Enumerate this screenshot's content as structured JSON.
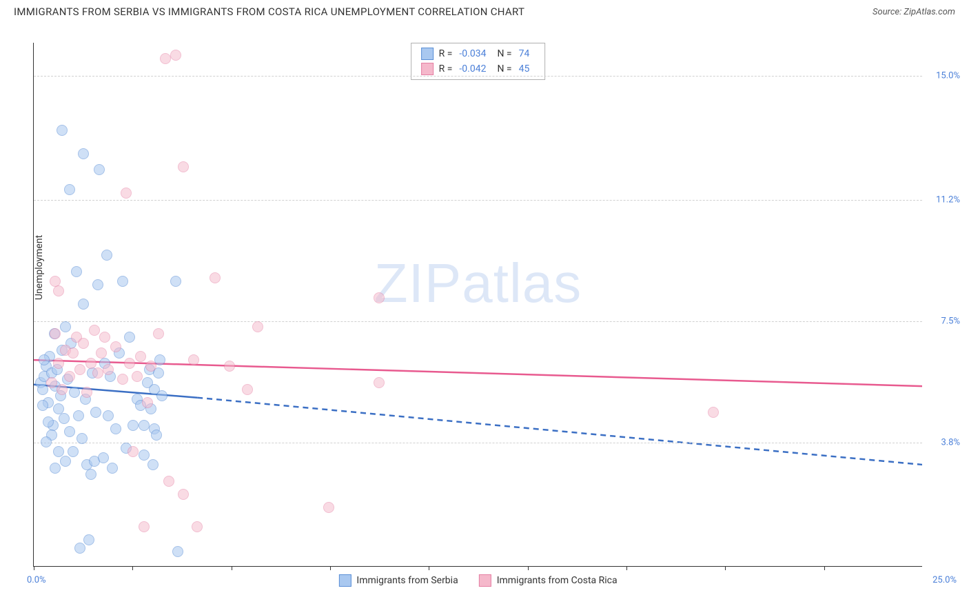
{
  "title": "IMMIGRANTS FROM SERBIA VS IMMIGRANTS FROM COSTA RICA UNEMPLOYMENT CORRELATION CHART",
  "source": "Source: ZipAtlas.com",
  "y_axis_label": "Unemployment",
  "watermark": "ZIPatlas",
  "chart": {
    "type": "scatter",
    "x_domain": [
      0,
      25
    ],
    "y_domain": [
      0,
      16
    ],
    "background_color": "#ffffff",
    "grid_color": "#d0d0d0",
    "grid_dash": "4,4",
    "point_radius": 8,
    "point_stroke_width": 1.5,
    "y_ticks": [
      {
        "value": 3.8,
        "label": "3.8%"
      },
      {
        "value": 7.5,
        "label": "7.5%"
      },
      {
        "value": 11.2,
        "label": "11.2%"
      },
      {
        "value": 15.0,
        "label": "15.0%"
      }
    ],
    "x_tick_positions": [
      0,
      2.78,
      5.56,
      8.33,
      11.11,
      13.89,
      16.67,
      19.44,
      22.22
    ],
    "x_label_min": "0.0%",
    "x_label_max": "25.0%",
    "x_label_color": "#4a7fd8",
    "y_label_color": "#4a7fd8"
  },
  "series": [
    {
      "name": "Immigrants from Serbia",
      "fill": "#a9c8f0",
      "stroke": "#5b8fd6",
      "fill_opacity": 0.55,
      "R": "-0.034",
      "N": "74",
      "trend": {
        "solid_from": [
          0,
          5.55
        ],
        "solid_to": [
          4.6,
          5.15
        ],
        "dash_from": [
          4.6,
          5.15
        ],
        "dash_to": [
          25,
          3.1
        ],
        "color": "#3b6fc4",
        "width": 2.5
      },
      "points": [
        [
          0.2,
          5.6
        ],
        [
          0.25,
          5.4
        ],
        [
          0.3,
          5.8
        ],
        [
          0.35,
          6.1
        ],
        [
          0.4,
          5.0
        ],
        [
          0.45,
          6.4
        ],
        [
          0.5,
          5.9
        ],
        [
          0.55,
          4.3
        ],
        [
          0.58,
          7.1
        ],
        [
          0.6,
          5.5
        ],
        [
          0.65,
          6.0
        ],
        [
          0.7,
          4.8
        ],
        [
          0.75,
          5.2
        ],
        [
          0.8,
          6.6
        ],
        [
          0.85,
          4.5
        ],
        [
          0.9,
          7.3
        ],
        [
          0.95,
          5.7
        ],
        [
          1.0,
          4.1
        ],
        [
          1.05,
          6.8
        ],
        [
          1.1,
          3.5
        ],
        [
          1.15,
          5.3
        ],
        [
          1.2,
          9.0
        ],
        [
          1.25,
          4.6
        ],
        [
          1.3,
          0.55
        ],
        [
          1.35,
          3.9
        ],
        [
          1.4,
          8.0
        ],
        [
          1.45,
          5.1
        ],
        [
          1.5,
          3.1
        ],
        [
          1.55,
          0.8
        ],
        [
          1.4,
          12.6
        ],
        [
          1.6,
          2.8
        ],
        [
          1.65,
          5.9
        ],
        [
          1.7,
          3.2
        ],
        [
          1.75,
          4.7
        ],
        [
          1.8,
          8.6
        ],
        [
          1.85,
          12.1
        ],
        [
          1.0,
          11.5
        ],
        [
          1.95,
          3.3
        ],
        [
          2.0,
          6.2
        ],
        [
          2.05,
          9.5
        ],
        [
          2.1,
          4.6
        ],
        [
          2.15,
          5.8
        ],
        [
          2.2,
          3.0
        ],
        [
          2.3,
          4.2
        ],
        [
          2.4,
          6.5
        ],
        [
          2.5,
          8.7
        ],
        [
          2.6,
          3.6
        ],
        [
          2.7,
          7.0
        ],
        [
          2.8,
          4.3
        ],
        [
          2.9,
          5.1
        ],
        [
          3.0,
          4.9
        ],
        [
          3.1,
          3.4
        ],
        [
          3.1,
          4.3
        ],
        [
          3.2,
          5.6
        ],
        [
          3.25,
          6.0
        ],
        [
          3.3,
          4.8
        ],
        [
          3.35,
          3.1
        ],
        [
          3.4,
          5.4
        ],
        [
          3.4,
          4.2
        ],
        [
          3.45,
          4.0
        ],
        [
          3.5,
          5.9
        ],
        [
          3.55,
          6.3
        ],
        [
          3.6,
          5.2
        ],
        [
          4.0,
          8.7
        ],
        [
          4.05,
          0.45
        ],
        [
          0.8,
          13.3
        ],
        [
          0.5,
          4.0
        ],
        [
          0.7,
          3.5
        ],
        [
          0.9,
          3.2
        ],
        [
          0.6,
          3.0
        ],
        [
          0.4,
          4.4
        ],
        [
          0.3,
          6.3
        ],
        [
          0.35,
          3.8
        ],
        [
          0.25,
          4.9
        ]
      ]
    },
    {
      "name": "Immigrants from Costa Rica",
      "fill": "#f5b8cb",
      "stroke": "#e57fa3",
      "fill_opacity": 0.5,
      "R": "-0.042",
      "N": "45",
      "trend": {
        "solid_from": [
          0,
          6.3
        ],
        "solid_to": [
          25,
          5.5
        ],
        "color": "#e85a8f",
        "width": 2.5
      },
      "points": [
        [
          0.5,
          5.6
        ],
        [
          0.6,
          7.1
        ],
        [
          0.7,
          6.2
        ],
        [
          0.8,
          5.4
        ],
        [
          0.9,
          6.6
        ],
        [
          1.0,
          5.8
        ],
        [
          1.1,
          6.5
        ],
        [
          1.2,
          7.0
        ],
        [
          1.3,
          6.0
        ],
        [
          1.4,
          6.8
        ],
        [
          1.5,
          5.3
        ],
        [
          1.6,
          6.2
        ],
        [
          1.7,
          7.2
        ],
        [
          1.8,
          5.9
        ],
        [
          1.9,
          6.5
        ],
        [
          2.0,
          7.0
        ],
        [
          2.1,
          6.0
        ],
        [
          2.3,
          6.7
        ],
        [
          2.5,
          5.7
        ],
        [
          2.6,
          11.4
        ],
        [
          2.7,
          6.2
        ],
        [
          2.8,
          3.5
        ],
        [
          2.9,
          5.8
        ],
        [
          3.0,
          6.4
        ],
        [
          3.1,
          1.2
        ],
        [
          3.2,
          5.0
        ],
        [
          3.3,
          6.1
        ],
        [
          3.5,
          7.1
        ],
        [
          3.7,
          15.5
        ],
        [
          3.8,
          2.6
        ],
        [
          4.0,
          15.6
        ],
        [
          4.2,
          12.2
        ],
        [
          4.2,
          2.2
        ],
        [
          4.5,
          6.3
        ],
        [
          4.6,
          1.2
        ],
        [
          5.1,
          8.8
        ],
        [
          5.5,
          6.1
        ],
        [
          6.0,
          5.4
        ],
        [
          6.3,
          7.3
        ],
        [
          8.3,
          1.8
        ],
        [
          9.7,
          8.2
        ],
        [
          9.7,
          5.6
        ],
        [
          19.1,
          4.7
        ],
        [
          0.6,
          8.7
        ],
        [
          0.7,
          8.4
        ]
      ]
    }
  ],
  "legend_top": {
    "R_label": "R =",
    "N_label": "N ="
  },
  "legend_bottom_labels": [
    "Immigrants from Serbia",
    "Immigrants from Costa Rica"
  ]
}
